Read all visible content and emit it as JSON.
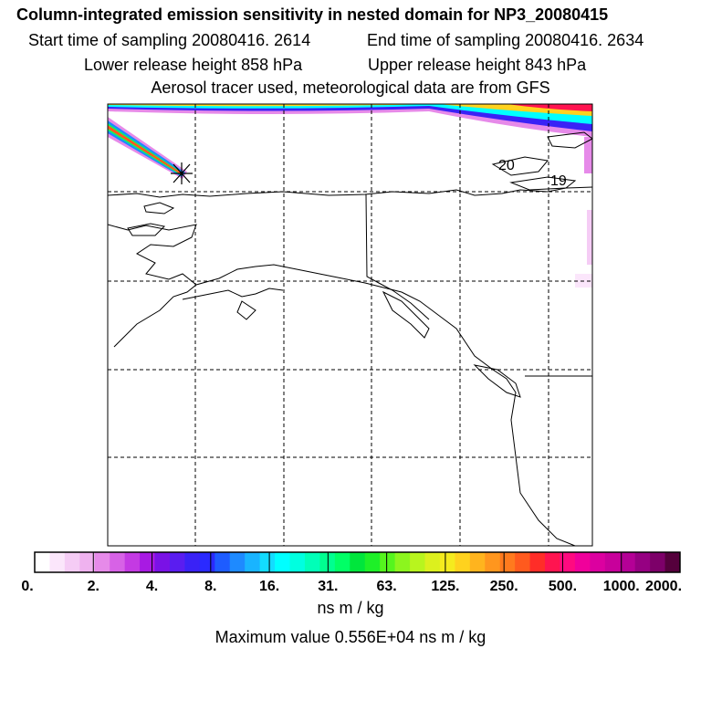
{
  "header": {
    "title": "Column-integrated emission sensitivity in nested domain for NP3_20080415",
    "start_time": "Start time of sampling 20080416.  2614",
    "end_time": "End time of sampling 20080416.  2634",
    "lower_height": "Lower release height  858 hPa",
    "upper_height": "Upper release height  843 hPa",
    "tracer_info": "Aerosol tracer used, meteorological data are from GFS"
  },
  "map": {
    "contour_labels": [
      "20",
      "19"
    ],
    "colors": {
      "frame": "#000000",
      "coast": "#000000",
      "grid": "#000000"
    }
  },
  "colorbar": {
    "tick_labels": [
      "0.",
      "2.",
      "4.",
      "8.",
      "16.",
      "31.",
      "63.",
      "125.",
      "250.",
      "500.",
      "1000.",
      "2000."
    ],
    "colors": [
      "#ffffff",
      "#fbe6fb",
      "#f5ccf5",
      "#efb2ef",
      "#e68ae9",
      "#d762e6",
      "#c43ae3",
      "#a81ae3",
      "#7a12e6",
      "#5a1df0",
      "#3a22f6",
      "#2a2aff",
      "#1e5cff",
      "#1e8aff",
      "#19b4ff",
      "#13dcff",
      "#00ffff",
      "#00ffe0",
      "#00ffb8",
      "#00ff90",
      "#00ff66",
      "#00e63c",
      "#1ef028",
      "#55f51e",
      "#8cf51e",
      "#b8f51e",
      "#dcf01e",
      "#f5eb1e",
      "#ffd21e",
      "#ffb41e",
      "#ff961e",
      "#ff7a1e",
      "#ff5a1e",
      "#ff2d28",
      "#ff1450",
      "#ff0a80",
      "#f0009b",
      "#dc00a0",
      "#c8009b",
      "#b40096",
      "#960082",
      "#7d0069",
      "#55003c"
    ],
    "unit": "ns m / kg"
  },
  "footer": {
    "max_value": "Maximum value  0.556E+04 ns m / kg"
  }
}
